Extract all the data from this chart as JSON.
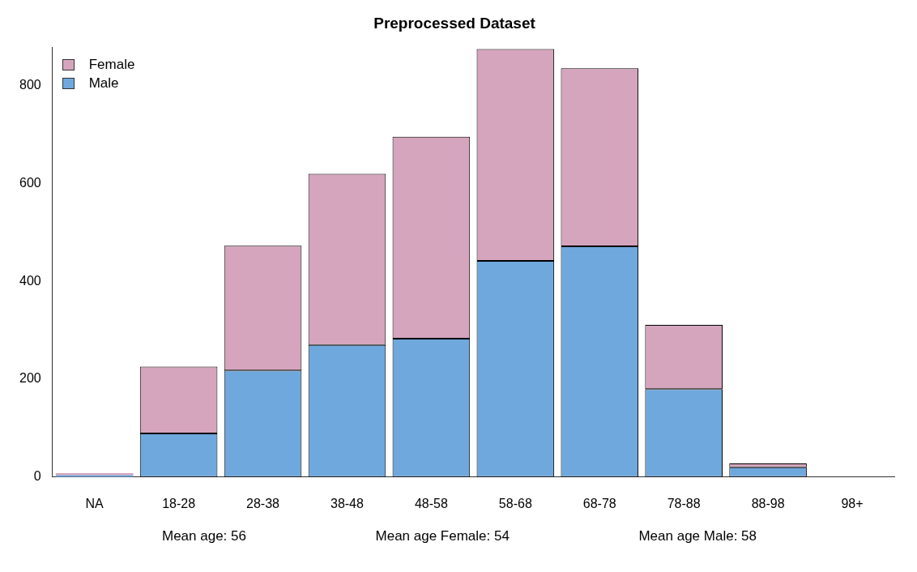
{
  "chart_data": {
    "type": "bar",
    "title": "Preprocessed Dataset",
    "categories": [
      "NA",
      "18-28",
      "28-38",
      "38-48",
      "48-58",
      "58-68",
      "68-78",
      "78-88",
      "88-98",
      "98+"
    ],
    "series": [
      {
        "name": "Male",
        "color": "#6fa8dc",
        "values": [
          4,
          89,
          218,
          270,
          283,
          442,
          472,
          180,
          20,
          null
        ]
      },
      {
        "name": "Female",
        "color": "#d5a5bd",
        "values": [
          4,
          137,
          255,
          350,
          413,
          433,
          364,
          131,
          8,
          null
        ]
      }
    ],
    "stacked": true,
    "ylim": [
      0,
      878
    ],
    "yticks": [
      0,
      200,
      400,
      600,
      800
    ],
    "grid": false,
    "legend": "top left",
    "annotations": [
      "Mean age: 56",
      "Mean age Female: 54",
      "Mean age Male: 58"
    ]
  }
}
